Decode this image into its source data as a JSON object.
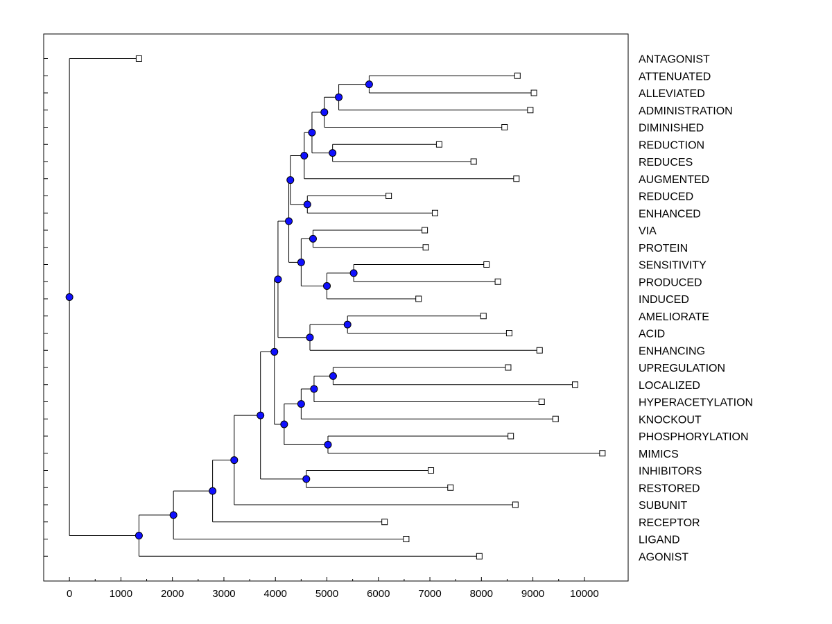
{
  "chart_data": {
    "type": "dendrogram",
    "orientation": "horizontal",
    "x_ticks": [
      "0",
      "1000",
      "2000",
      "3000",
      "4000",
      "5000",
      "6000",
      "7000",
      "8000",
      "9000",
      "10000"
    ],
    "xlim": [
      -500,
      10850
    ],
    "colors": {
      "node": "#1010ff",
      "line": "#000000",
      "leaf": "#ffffff"
    },
    "leaves": [
      {
        "label": "ANTAGONIST",
        "x": 1350
      },
      {
        "label": "ATTENUATED",
        "x": 8700
      },
      {
        "label": "ALLEVIATED",
        "x": 9020
      },
      {
        "label": "ADMINISTRATION",
        "x": 8950
      },
      {
        "label": "DIMINISHED",
        "x": 8450
      },
      {
        "label": "REDUCTION",
        "x": 7180
      },
      {
        "label": "REDUCES",
        "x": 7850
      },
      {
        "label": "AUGMENTED",
        "x": 8680
      },
      {
        "label": "REDUCED",
        "x": 6200
      },
      {
        "label": "ENHANCED",
        "x": 7100
      },
      {
        "label": "VIA",
        "x": 6900
      },
      {
        "label": "PROTEIN",
        "x": 6920
      },
      {
        "label": "SENSITIVITY",
        "x": 8100
      },
      {
        "label": "PRODUCED",
        "x": 8320
      },
      {
        "label": "INDUCED",
        "x": 6780
      },
      {
        "label": "AMELIORATE",
        "x": 8040
      },
      {
        "label": "ACID",
        "x": 8540
      },
      {
        "label": "ENHANCING",
        "x": 9130
      },
      {
        "label": "UPREGULATION",
        "x": 8520
      },
      {
        "label": "LOCALIZED",
        "x": 9820
      },
      {
        "label": "HYPERACETYLATION",
        "x": 9170
      },
      {
        "label": "KNOCKOUT",
        "x": 9440
      },
      {
        "label": "PHOSPHORYLATION",
        "x": 8570
      },
      {
        "label": "MIMICS",
        "x": 10350
      },
      {
        "label": "INHIBITORS",
        "x": 7020
      },
      {
        "label": "RESTORED",
        "x": 7400
      },
      {
        "label": "SUBUNIT",
        "x": 8660
      },
      {
        "label": "RECEPTOR",
        "x": 6120
      },
      {
        "label": "LIGAND",
        "x": 6540
      },
      {
        "label": "AGONIST",
        "x": 7960
      }
    ],
    "merges": [
      {
        "id": "m1",
        "x": 5820,
        "children": [
          "L1",
          "L2"
        ]
      },
      {
        "id": "m2",
        "x": 5230,
        "children": [
          "m1",
          "L3"
        ]
      },
      {
        "id": "m3",
        "x": 4950,
        "children": [
          "m2",
          "L4"
        ]
      },
      {
        "id": "m4",
        "x": 5110,
        "children": [
          "L5",
          "L6"
        ]
      },
      {
        "id": "m5",
        "x": 4710,
        "children": [
          "m3",
          "m4"
        ]
      },
      {
        "id": "m6",
        "x": 4560,
        "children": [
          "m5",
          "L7"
        ]
      },
      {
        "id": "m7",
        "x": 4620,
        "children": [
          "L8",
          "L9"
        ]
      },
      {
        "id": "m8",
        "x": 4290,
        "children": [
          "m6",
          "m7"
        ]
      },
      {
        "id": "m9",
        "x": 4730,
        "children": [
          "L10",
          "L11"
        ]
      },
      {
        "id": "m10",
        "x": 5520,
        "children": [
          "L12",
          "L13"
        ]
      },
      {
        "id": "m11",
        "x": 5000,
        "children": [
          "m10",
          "L14"
        ]
      },
      {
        "id": "m12",
        "x": 4500,
        "children": [
          "m9",
          "m11"
        ]
      },
      {
        "id": "m13",
        "x": 4260,
        "children": [
          "m8",
          "m12"
        ]
      },
      {
        "id": "m14",
        "x": 5400,
        "children": [
          "L15",
          "L16"
        ]
      },
      {
        "id": "m15",
        "x": 4670,
        "children": [
          "m14",
          "L17"
        ]
      },
      {
        "id": "m16",
        "x": 4050,
        "children": [
          "m13",
          "m15"
        ]
      },
      {
        "id": "m17",
        "x": 5120,
        "children": [
          "L18",
          "L19"
        ]
      },
      {
        "id": "m18",
        "x": 4750,
        "children": [
          "m17",
          "L20"
        ]
      },
      {
        "id": "m19",
        "x": 4500,
        "children": [
          "m18",
          "L21"
        ]
      },
      {
        "id": "m20",
        "x": 5020,
        "children": [
          "L22",
          "L23"
        ]
      },
      {
        "id": "m21",
        "x": 4170,
        "children": [
          "m19",
          "m20"
        ]
      },
      {
        "id": "m22",
        "x": 3980,
        "children": [
          "m16",
          "m21"
        ]
      },
      {
        "id": "m23",
        "x": 4600,
        "children": [
          "L24",
          "L25"
        ]
      },
      {
        "id": "m24",
        "x": 3710,
        "children": [
          "m22",
          "m23"
        ]
      },
      {
        "id": "m25",
        "x": 3200,
        "children": [
          "m24",
          "L26"
        ]
      },
      {
        "id": "m26",
        "x": 2780,
        "children": [
          "m25",
          "L27"
        ]
      },
      {
        "id": "m27",
        "x": 2020,
        "children": [
          "m26",
          "L28"
        ]
      },
      {
        "id": "m28",
        "x": 1350,
        "children": [
          "m27",
          "L29"
        ]
      },
      {
        "id": "m29",
        "x": 0,
        "children": [
          "L0",
          "m28"
        ]
      }
    ]
  }
}
